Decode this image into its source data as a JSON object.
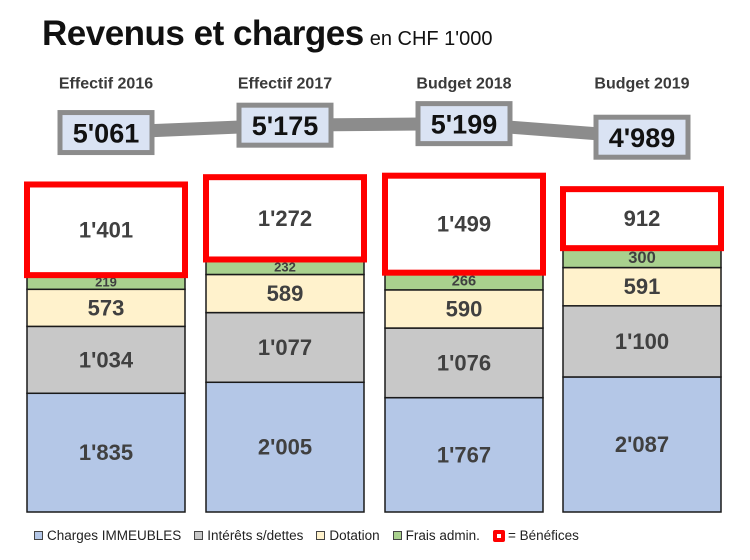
{
  "title": "Revenus et charges",
  "unit": "en CHF 1'000",
  "colors": {
    "immeubles": "#b4c7e7",
    "interets": "#c8c8c8",
    "dotation": "#fff2cc",
    "frais": "#a9d18e",
    "benefices_border": "#ff0000",
    "total_box": "#dae3f3",
    "connector": "#8c8c8c"
  },
  "legend": {
    "immeubles": "Charges IMMEUBLES",
    "interets": "Intérêts s/dettes",
    "dotation": "Dotation",
    "frais": "Frais admin.",
    "benefices": "= Bénéfices"
  },
  "chart_data": {
    "type": "bar",
    "stacked": true,
    "categories": [
      "Effectif 2016",
      "Effectif 2017",
      "Budget 2018",
      "Budget 2019"
    ],
    "series": [
      {
        "key": "immeubles",
        "name": "Charges IMMEUBLES",
        "values": [
          1835,
          2005,
          1767,
          2087
        ],
        "labels": [
          "1'835",
          "2'005",
          "1'767",
          "2'087"
        ]
      },
      {
        "key": "interets",
        "name": "Intérêts s/dettes",
        "values": [
          1034,
          1077,
          1076,
          1100
        ],
        "labels": [
          "1'034",
          "1'077",
          "1'076",
          "1'100"
        ]
      },
      {
        "key": "dotation",
        "name": "Dotation",
        "values": [
          573,
          589,
          590,
          591
        ],
        "labels": [
          "573",
          "589",
          "590",
          "591"
        ]
      },
      {
        "key": "frais",
        "name": "Frais admin.",
        "values": [
          219,
          232,
          266,
          300
        ],
        "labels": [
          "219",
          "232",
          "266",
          "300"
        ]
      },
      {
        "key": "benefices",
        "name": "= Bénéfices",
        "values": [
          1401,
          1272,
          1499,
          912
        ],
        "labels": [
          "1'401",
          "1'272",
          "1'499",
          "912"
        ]
      }
    ],
    "totals": [
      5061,
      5175,
      5199,
      4989
    ],
    "total_labels": [
      "5'061",
      "5'175",
      "5'199",
      "4'989"
    ],
    "legend_position": "bottom"
  }
}
